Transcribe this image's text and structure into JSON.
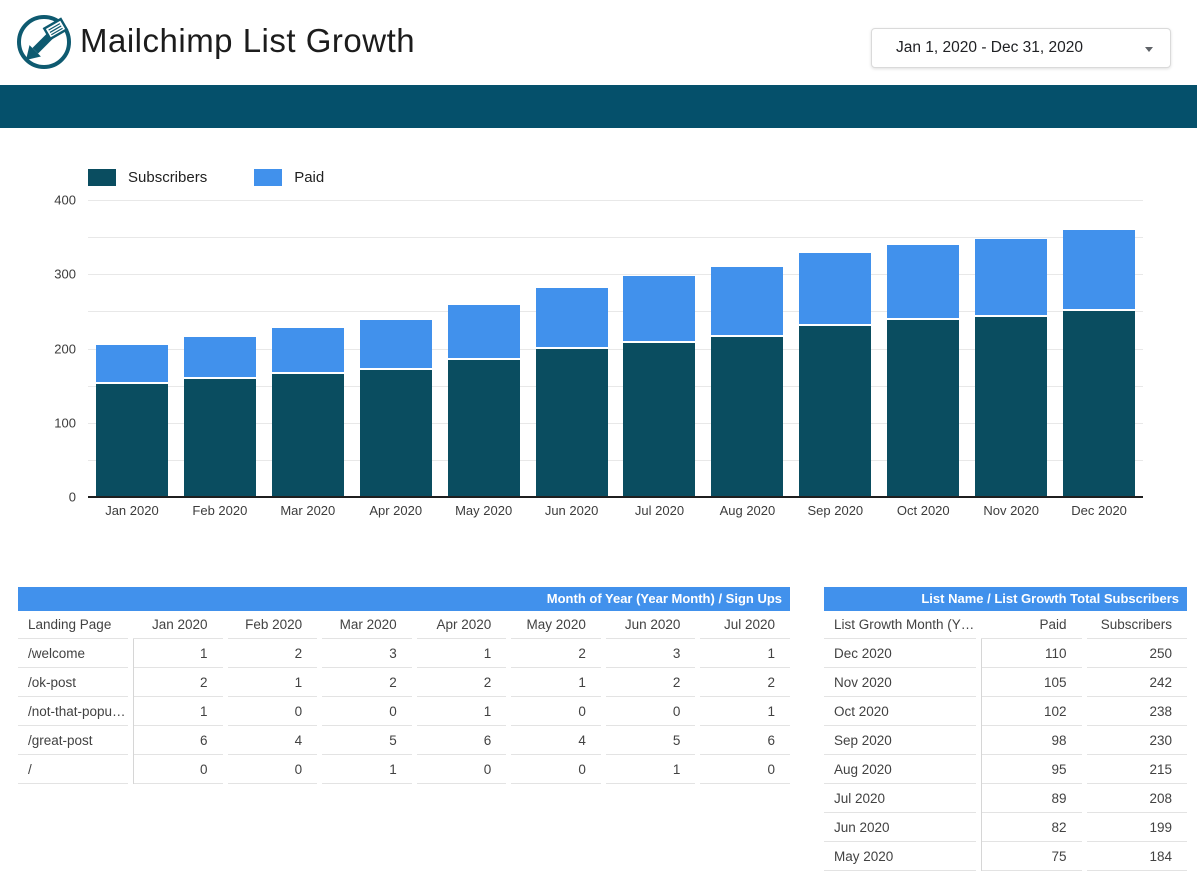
{
  "header": {
    "title": "Mailchimp List Growth",
    "date_range": {
      "value": "Jan 1, 2020 - Dec 31, 2020"
    }
  },
  "colors": {
    "banner": "#05506b",
    "subscribers_series": "#0a4d60",
    "paid_series": "#4191ec",
    "table_header": "#4191ec",
    "logo": "#0e5a70"
  },
  "chart_data": {
    "type": "bar",
    "stacked": true,
    "categories": [
      "Jan 2020",
      "Feb 2020",
      "Mar 2020",
      "Apr 2020",
      "May 2020",
      "Jun 2020",
      "Jul 2020",
      "Aug 2020",
      "Sep 2020",
      "Oct 2020",
      "Nov 2020",
      "Dec 2020"
    ],
    "series": [
      {
        "name": "Subscribers",
        "color": "#0a4d60",
        "values": [
          152,
          159,
          166,
          171,
          184,
          199,
          208,
          215,
          230,
          238,
          242,
          250
        ]
      },
      {
        "name": "Paid",
        "color": "#4191ec",
        "values": [
          53,
          57,
          61,
          67,
          75,
          82,
          89,
          95,
          98,
          102,
          105,
          110
        ]
      }
    ],
    "ylim": [
      0,
      400
    ],
    "yticks": [
      0,
      100,
      200,
      300,
      400
    ],
    "grid_interval": 50,
    "grid": true,
    "legend_position": "top-left"
  },
  "tables": [
    {
      "title": "Month of Year (Year Month) / Sign Ups",
      "columns": [
        "Landing Page",
        "Jan 2020",
        "Feb 2020",
        "Mar 2020",
        "Apr 2020",
        "May 2020",
        "Jun 2020",
        "Jul 2020"
      ],
      "rows": [
        [
          "/welcome",
          1,
          2,
          3,
          1,
          2,
          3,
          1
        ],
        [
          "/ok-post",
          2,
          1,
          2,
          2,
          1,
          2,
          2
        ],
        [
          "/not-that-popu…",
          1,
          0,
          0,
          1,
          0,
          0,
          1
        ],
        [
          "/great-post",
          6,
          4,
          5,
          6,
          4,
          5,
          6
        ],
        [
          "/",
          0,
          0,
          1,
          0,
          0,
          1,
          0
        ]
      ]
    },
    {
      "title": "List Name / List Growth Total Subscribers",
      "columns": [
        "List Growth Month (Y…",
        "Paid",
        "Subscribers"
      ],
      "rows": [
        [
          "Dec 2020",
          110,
          250
        ],
        [
          "Nov 2020",
          105,
          242
        ],
        [
          "Oct 2020",
          102,
          238
        ],
        [
          "Sep 2020",
          98,
          230
        ],
        [
          "Aug 2020",
          95,
          215
        ],
        [
          "Jul 2020",
          89,
          208
        ],
        [
          "Jun 2020",
          82,
          199
        ],
        [
          "May 2020",
          75,
          184
        ]
      ]
    }
  ]
}
